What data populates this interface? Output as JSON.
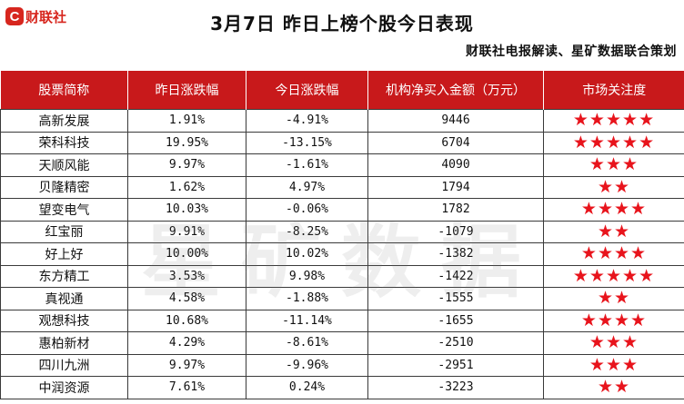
{
  "logo": {
    "letter": "C",
    "text": "财联社"
  },
  "title": "3月7日  昨日上榜个股今日表现",
  "subtitle": "财联社电报解读、星矿数据联合策划",
  "watermark": "星矿数据",
  "table": {
    "headers": [
      "股票简称",
      "昨日涨跌幅",
      "今日涨跌幅",
      "机构净买入金额（万元）",
      "市场关注度"
    ],
    "rows": [
      {
        "name": "高新发展",
        "prev": "1.91%",
        "today": "-4.91%",
        "net": "9446",
        "stars": 5
      },
      {
        "name": "荣科科技",
        "prev": "19.95%",
        "today": "-13.15%",
        "net": "6704",
        "stars": 5
      },
      {
        "name": "天顺风能",
        "prev": "9.97%",
        "today": "-1.61%",
        "net": "4090",
        "stars": 3
      },
      {
        "name": "贝隆精密",
        "prev": "1.62%",
        "today": "4.97%",
        "net": "1794",
        "stars": 2
      },
      {
        "name": "望变电气",
        "prev": "10.03%",
        "today": "-0.06%",
        "net": "1782",
        "stars": 4
      },
      {
        "name": "红宝丽",
        "prev": "9.91%",
        "today": "-8.25%",
        "net": "-1079",
        "stars": 2
      },
      {
        "name": "好上好",
        "prev": "10.00%",
        "today": "10.02%",
        "net": "-1382",
        "stars": 4
      },
      {
        "name": "东方精工",
        "prev": "3.53%",
        "today": "9.98%",
        "net": "-1422",
        "stars": 5
      },
      {
        "name": "真视通",
        "prev": "4.58%",
        "today": "-1.88%",
        "net": "-1555",
        "stars": 2
      },
      {
        "name": "观想科技",
        "prev": "10.68%",
        "today": "-11.14%",
        "net": "-1655",
        "stars": 4
      },
      {
        "name": "惠柏新材",
        "prev": "4.29%",
        "today": "-8.61%",
        "net": "-2510",
        "stars": 3
      },
      {
        "name": "四川九洲",
        "prev": "9.97%",
        "today": "-9.96%",
        "net": "-2951",
        "stars": 3
      },
      {
        "name": "中润资源",
        "prev": "7.61%",
        "today": "0.24%",
        "net": "-3223",
        "stars": 2
      }
    ]
  }
}
